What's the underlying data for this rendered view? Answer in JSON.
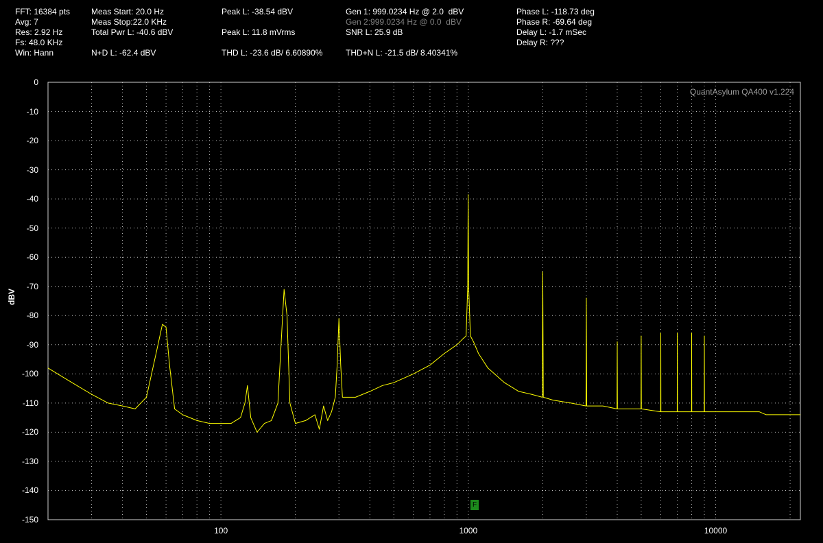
{
  "header": {
    "col1": [
      "FFT: 16384 pts",
      "Avg: 7",
      "Res: 2.92 Hz",
      "Fs: 48.0 KHz",
      "Win: Hann"
    ],
    "col2": [
      "Meas Start: 20.0 Hz",
      "Meas Stop:22.0 KHz",
      "Total Pwr L: -40.6 dBV",
      "",
      "N+D L: -62.4 dBV"
    ],
    "col3": [
      "Peak L: -38.54 dBV",
      "",
      "Peak L: 11.8 mVrms",
      "",
      "THD L: -23.6 dB/ 6.60890%"
    ],
    "col4_gen1": "Gen 1: 999.0234 Hz @ 2.0  dBV",
    "col4_gen2": "Gen 2:999.0234 Hz @ 0.0  dBV",
    "col4_snr": "SNR L: 25.9 dB",
    "col4_thdn": "THD+N L: -21.5 dB/ 8.40341%",
    "col5": [
      "Phase L: -118.73 deg",
      "Phase R: -69.64 deg",
      "Delay L: -1.7 mSec",
      "Delay R: ???"
    ]
  },
  "watermark": "QuantAsylum QA400 v1.224",
  "marker_label": "F",
  "colors": {
    "trace": "#ffff00",
    "grid": "#c0c0c0",
    "background": "#000000",
    "marker": "#1c8a1c"
  },
  "chart_data": {
    "type": "line",
    "title": "",
    "xlabel": "",
    "ylabel": "dBV",
    "x_scale": "log",
    "xlim": [
      20,
      22000
    ],
    "ylim": [
      -150,
      0
    ],
    "x_ticks": [
      "100",
      "1000",
      "10000"
    ],
    "y_ticks": [
      "0",
      "-10",
      "-20",
      "-30",
      "-40",
      "-50",
      "-60",
      "-70",
      "-80",
      "-90",
      "-100",
      "-110",
      "-120",
      "-130",
      "-140",
      "-150"
    ],
    "grid": true,
    "series": [
      {
        "x": [
          20,
          25,
          30,
          35,
          40,
          45,
          50,
          55,
          58,
          60,
          62,
          65,
          70,
          80,
          90,
          100,
          110,
          120,
          125,
          128,
          132,
          140,
          150,
          160,
          170,
          175,
          180,
          185,
          190,
          200,
          220,
          240,
          250,
          260,
          270,
          280,
          290,
          295,
          300,
          305,
          310,
          350,
          400,
          450,
          500,
          600,
          700,
          800,
          900,
          950,
          980,
          995,
          999,
          1003,
          1020,
          1050,
          1100,
          1200,
          1400,
          1600,
          1800,
          1990,
          2000,
          2010,
          2200,
          2600,
          2990,
          3000,
          3010,
          3500,
          3990,
          4000,
          4010,
          4990,
          5000,
          5010,
          5990,
          6000,
          6010,
          6990,
          7000,
          7010,
          7990,
          8000,
          8010,
          8990,
          9000,
          9010,
          10000,
          11000,
          12000,
          13000,
          14000,
          15000,
          16000,
          17000,
          18000,
          19000,
          20000,
          21000,
          22000
        ],
        "y": [
          -98,
          -103,
          -107,
          -110,
          -111,
          -112,
          -108,
          -92,
          -83,
          -84,
          -97,
          -112,
          -114,
          -116,
          -117,
          -117,
          -117,
          -115,
          -110,
          -104,
          -115,
          -120,
          -117,
          -116,
          -110,
          -90,
          -71,
          -80,
          -110,
          -117,
          -116,
          -114,
          -119,
          -111,
          -116,
          -113,
          -108,
          -97,
          -81,
          -97,
          -108,
          -108,
          -106,
          -104,
          -103,
          -100,
          -97,
          -93,
          -90,
          -88,
          -87,
          -70,
          -38.5,
          -70,
          -87,
          -89,
          -93,
          -98,
          -103,
          -106,
          -107,
          -108,
          -65,
          -108,
          -109,
          -110,
          -111,
          -74,
          -111,
          -111,
          -112,
          -89,
          -112,
          -112,
          -87,
          -112,
          -113,
          -86,
          -113,
          -113,
          -86,
          -113,
          -113,
          -86,
          -113,
          -113,
          -87,
          -113,
          -113,
          -113,
          -113,
          -113,
          -113,
          -113,
          -114,
          -114,
          -114,
          -114,
          -114,
          -114,
          -114
        ]
      }
    ]
  }
}
